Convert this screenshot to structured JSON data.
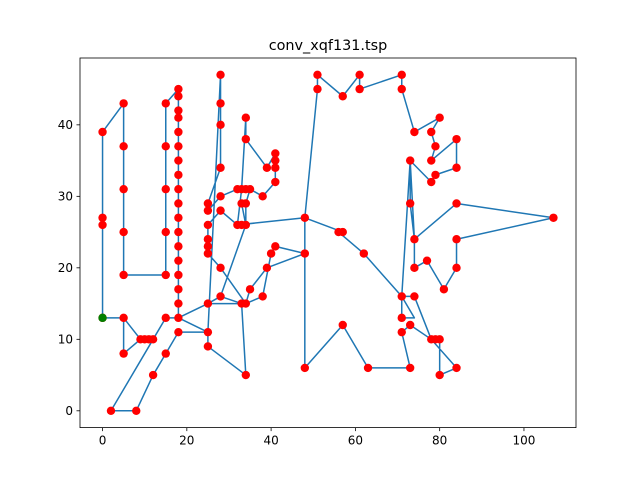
{
  "chart_data": {
    "type": "scatter",
    "title": "conv_xqf131.tsp",
    "xlabel": "",
    "ylabel": "",
    "xlim": [
      -5.35,
      112.35
    ],
    "ylim": [
      -2.35,
      49.35
    ],
    "xticks": [
      0,
      20,
      40,
      60,
      80,
      100
    ],
    "yticks": [
      0,
      10,
      20,
      30,
      40
    ],
    "grid": false,
    "colors": {
      "route": "#1f77b4",
      "cities": "#ff0000",
      "start": "#008000"
    },
    "start": [
      0,
      13
    ],
    "tour": [
      [
        0,
        13
      ],
      [
        5,
        13
      ],
      [
        5,
        8
      ],
      [
        9,
        10
      ],
      [
        10,
        10
      ],
      [
        11,
        10
      ],
      [
        12,
        10
      ],
      [
        15,
        13
      ],
      [
        18,
        13
      ],
      [
        25,
        15
      ],
      [
        28,
        16
      ],
      [
        33,
        15
      ],
      [
        34,
        15
      ],
      [
        38,
        16
      ],
      [
        40,
        22
      ],
      [
        41,
        23
      ],
      [
        48,
        22
      ],
      [
        48,
        6
      ],
      [
        57,
        12
      ],
      [
        63,
        6
      ],
      [
        73,
        6
      ],
      [
        71,
        11
      ],
      [
        73,
        12
      ],
      [
        78,
        10
      ],
      [
        79,
        10
      ],
      [
        80,
        10
      ],
      [
        80,
        5
      ],
      [
        84,
        6
      ],
      [
        78,
        10
      ],
      [
        74,
        16
      ],
      [
        71,
        16
      ],
      [
        71,
        13
      ],
      [
        74,
        13
      ],
      [
        71,
        16
      ],
      [
        62,
        22
      ],
      [
        56,
        25
      ],
      [
        57,
        25
      ],
      [
        48,
        27
      ],
      [
        48,
        22
      ],
      [
        39,
        20
      ],
      [
        35,
        17
      ],
      [
        34,
        15
      ],
      [
        28,
        20
      ],
      [
        25,
        22
      ],
      [
        25,
        23
      ],
      [
        25,
        24
      ],
      [
        25,
        26
      ],
      [
        28,
        28
      ],
      [
        32,
        26
      ],
      [
        33,
        26
      ],
      [
        34,
        26
      ],
      [
        33,
        29
      ],
      [
        34,
        29
      ],
      [
        35,
        31
      ],
      [
        34,
        31
      ],
      [
        33,
        31
      ],
      [
        32,
        31
      ],
      [
        28,
        30
      ],
      [
        25,
        28
      ],
      [
        25,
        29
      ],
      [
        28,
        34
      ],
      [
        28,
        40
      ],
      [
        28,
        43
      ],
      [
        28,
        47
      ],
      [
        25,
        11
      ],
      [
        18,
        11
      ],
      [
        15,
        8
      ],
      [
        12,
        5
      ],
      [
        8,
        0
      ],
      [
        2,
        0
      ],
      [
        12,
        10
      ],
      [
        11,
        10
      ],
      [
        10,
        10
      ],
      [
        9,
        10
      ],
      [
        5,
        13
      ],
      [
        0,
        13
      ],
      [
        0,
        26
      ],
      [
        0,
        27
      ],
      [
        0,
        39
      ],
      [
        5,
        43
      ],
      [
        5,
        37
      ],
      [
        5,
        31
      ],
      [
        5,
        25
      ],
      [
        5,
        19
      ],
      [
        15,
        19
      ],
      [
        15,
        25
      ],
      [
        15,
        31
      ],
      [
        15,
        37
      ],
      [
        15,
        43
      ],
      [
        18,
        45
      ],
      [
        18,
        44
      ],
      [
        18,
        42
      ],
      [
        18,
        41
      ],
      [
        18,
        39
      ],
      [
        18,
        37
      ],
      [
        18,
        35
      ],
      [
        18,
        33
      ],
      [
        18,
        31
      ],
      [
        18,
        29
      ],
      [
        18,
        27
      ],
      [
        18,
        25
      ],
      [
        18,
        23
      ],
      [
        18,
        21
      ],
      [
        18,
        19
      ],
      [
        18,
        17
      ],
      [
        18,
        15
      ],
      [
        18,
        13
      ],
      [
        25,
        11
      ],
      [
        25,
        9
      ],
      [
        34,
        5
      ],
      [
        33,
        15
      ],
      [
        25,
        15
      ],
      [
        28,
        16
      ],
      [
        34,
        26
      ],
      [
        34,
        29
      ],
      [
        35,
        31
      ],
      [
        38,
        30
      ],
      [
        41,
        32
      ],
      [
        41,
        34
      ],
      [
        41,
        35
      ],
      [
        41,
        36
      ],
      [
        39,
        34
      ],
      [
        34,
        38
      ],
      [
        34,
        41
      ],
      [
        33,
        31
      ],
      [
        32,
        26
      ],
      [
        48,
        27
      ],
      [
        51,
        45
      ],
      [
        51,
        47
      ],
      [
        57,
        44
      ],
      [
        61,
        47
      ],
      [
        61,
        45
      ],
      [
        71,
        47
      ],
      [
        71,
        45
      ],
      [
        74,
        39
      ],
      [
        80,
        41
      ],
      [
        78,
        39
      ],
      [
        79,
        37
      ],
      [
        78,
        35
      ],
      [
        84,
        38
      ],
      [
        84,
        34
      ],
      [
        79,
        33
      ],
      [
        78,
        32
      ],
      [
        73,
        35
      ],
      [
        73,
        29
      ],
      [
        74,
        24
      ],
      [
        74,
        20
      ],
      [
        77,
        21
      ],
      [
        81,
        17
      ],
      [
        84,
        20
      ],
      [
        84,
        24
      ],
      [
        107,
        27
      ],
      [
        84,
        29
      ],
      [
        74,
        24
      ],
      [
        73,
        35
      ],
      [
        71,
        16
      ]
    ],
    "cities": [
      [
        0,
        13
      ],
      [
        0,
        26
      ],
      [
        0,
        27
      ],
      [
        0,
        39
      ],
      [
        2,
        0
      ],
      [
        5,
        8
      ],
      [
        5,
        13
      ],
      [
        5,
        19
      ],
      [
        5,
        25
      ],
      [
        5,
        31
      ],
      [
        5,
        37
      ],
      [
        5,
        43
      ],
      [
        8,
        0
      ],
      [
        9,
        10
      ],
      [
        10,
        10
      ],
      [
        11,
        10
      ],
      [
        12,
        5
      ],
      [
        12,
        10
      ],
      [
        15,
        8
      ],
      [
        15,
        13
      ],
      [
        15,
        19
      ],
      [
        15,
        25
      ],
      [
        15,
        31
      ],
      [
        15,
        37
      ],
      [
        15,
        43
      ],
      [
        18,
        11
      ],
      [
        18,
        13
      ],
      [
        18,
        15
      ],
      [
        18,
        17
      ],
      [
        18,
        19
      ],
      [
        18,
        21
      ],
      [
        18,
        23
      ],
      [
        18,
        25
      ],
      [
        18,
        27
      ],
      [
        18,
        29
      ],
      [
        18,
        31
      ],
      [
        18,
        33
      ],
      [
        18,
        35
      ],
      [
        18,
        37
      ],
      [
        18,
        39
      ],
      [
        18,
        41
      ],
      [
        18,
        42
      ],
      [
        18,
        44
      ],
      [
        18,
        45
      ],
      [
        25,
        9
      ],
      [
        25,
        11
      ],
      [
        25,
        15
      ],
      [
        25,
        22
      ],
      [
        25,
        23
      ],
      [
        25,
        24
      ],
      [
        25,
        26
      ],
      [
        25,
        28
      ],
      [
        25,
        29
      ],
      [
        28,
        16
      ],
      [
        28,
        20
      ],
      [
        28,
        28
      ],
      [
        28,
        30
      ],
      [
        28,
        34
      ],
      [
        28,
        40
      ],
      [
        28,
        43
      ],
      [
        28,
        47
      ],
      [
        32,
        26
      ],
      [
        32,
        31
      ],
      [
        33,
        15
      ],
      [
        33,
        26
      ],
      [
        33,
        29
      ],
      [
        33,
        31
      ],
      [
        34,
        5
      ],
      [
        34,
        15
      ],
      [
        34,
        26
      ],
      [
        34,
        29
      ],
      [
        34,
        31
      ],
      [
        34,
        38
      ],
      [
        34,
        41
      ],
      [
        35,
        17
      ],
      [
        35,
        31
      ],
      [
        38,
        16
      ],
      [
        38,
        30
      ],
      [
        39,
        20
      ],
      [
        39,
        34
      ],
      [
        40,
        22
      ],
      [
        41,
        23
      ],
      [
        41,
        32
      ],
      [
        41,
        34
      ],
      [
        41,
        35
      ],
      [
        41,
        36
      ],
      [
        48,
        6
      ],
      [
        48,
        22
      ],
      [
        48,
        27
      ],
      [
        51,
        45
      ],
      [
        51,
        47
      ],
      [
        56,
        25
      ],
      [
        57,
        12
      ],
      [
        57,
        25
      ],
      [
        57,
        44
      ],
      [
        61,
        45
      ],
      [
        61,
        47
      ],
      [
        62,
        22
      ],
      [
        63,
        6
      ],
      [
        71,
        11
      ],
      [
        71,
        13
      ],
      [
        71,
        16
      ],
      [
        71,
        45
      ],
      [
        71,
        47
      ],
      [
        73,
        6
      ],
      [
        73,
        12
      ],
      [
        73,
        29
      ],
      [
        73,
        35
      ],
      [
        74,
        16
      ],
      [
        74,
        20
      ],
      [
        74,
        24
      ],
      [
        74,
        39
      ],
      [
        77,
        21
      ],
      [
        78,
        10
      ],
      [
        78,
        32
      ],
      [
        78,
        35
      ],
      [
        78,
        39
      ],
      [
        79,
        10
      ],
      [
        79,
        33
      ],
      [
        79,
        37
      ],
      [
        80,
        5
      ],
      [
        80,
        10
      ],
      [
        80,
        41
      ],
      [
        81,
        17
      ],
      [
        84,
        6
      ],
      [
        84,
        20
      ],
      [
        84,
        24
      ],
      [
        84,
        29
      ],
      [
        84,
        34
      ],
      [
        84,
        38
      ],
      [
        107,
        27
      ]
    ]
  }
}
